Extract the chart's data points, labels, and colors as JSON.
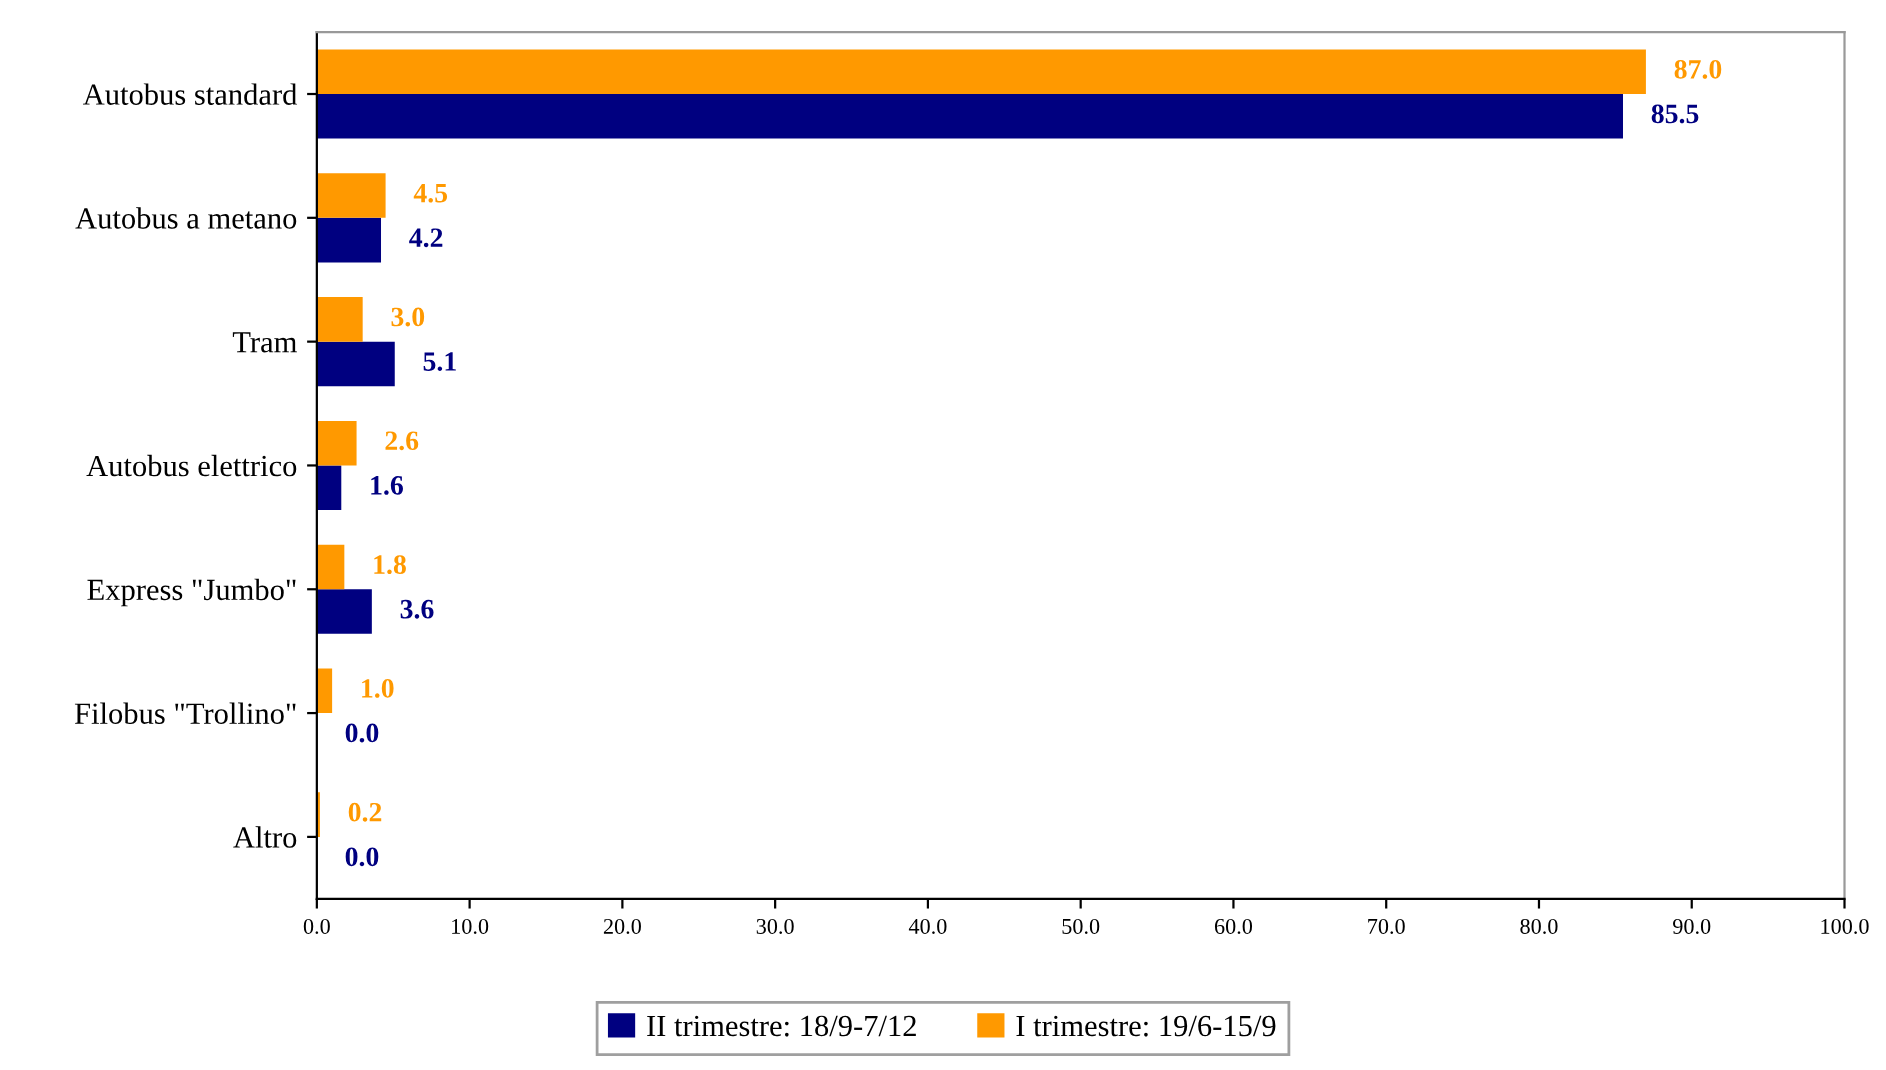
{
  "chart_data": {
    "type": "bar",
    "orientation": "horizontal",
    "categories": [
      "Autobus standard",
      "Autobus a metano",
      "Tram",
      "Autobus elettrico",
      "Express \"Jumbo\"",
      "Filobus \"Trollino\"",
      "Altro"
    ],
    "series": [
      {
        "name": "II trimestre: 18/9-7/12",
        "color": "#000080",
        "values": [
          85.5,
          4.2,
          5.1,
          1.6,
          3.6,
          0.0,
          0.0
        ],
        "value_labels": [
          "85.5",
          "4.2",
          "5.1",
          "1.6",
          "3.6",
          "0.0",
          "0.0"
        ]
      },
      {
        "name": "I trimestre: 19/6-15/9",
        "color": "#ff9900",
        "values": [
          87.0,
          4.5,
          3.0,
          2.6,
          1.8,
          1.0,
          0.2
        ],
        "value_labels": [
          "87.0",
          "4.5",
          "3.0",
          "2.6",
          "1.8",
          "1.0",
          "0.2"
        ]
      }
    ],
    "xlim": [
      0,
      100
    ],
    "xticks": [
      {
        "value": 0,
        "label": "0.0"
      },
      {
        "value": 10,
        "label": "10.0"
      },
      {
        "value": 20,
        "label": "20.0"
      },
      {
        "value": 30,
        "label": "30.0"
      },
      {
        "value": 40,
        "label": "40.0"
      },
      {
        "value": 50,
        "label": "50.0"
      },
      {
        "value": 60,
        "label": "60.0"
      },
      {
        "value": 70,
        "label": "70.0"
      },
      {
        "value": 80,
        "label": "80.0"
      },
      {
        "value": 90,
        "label": "90.0"
      },
      {
        "value": 100,
        "label": "100.0"
      }
    ],
    "grid": false,
    "legend": "bottom"
  }
}
